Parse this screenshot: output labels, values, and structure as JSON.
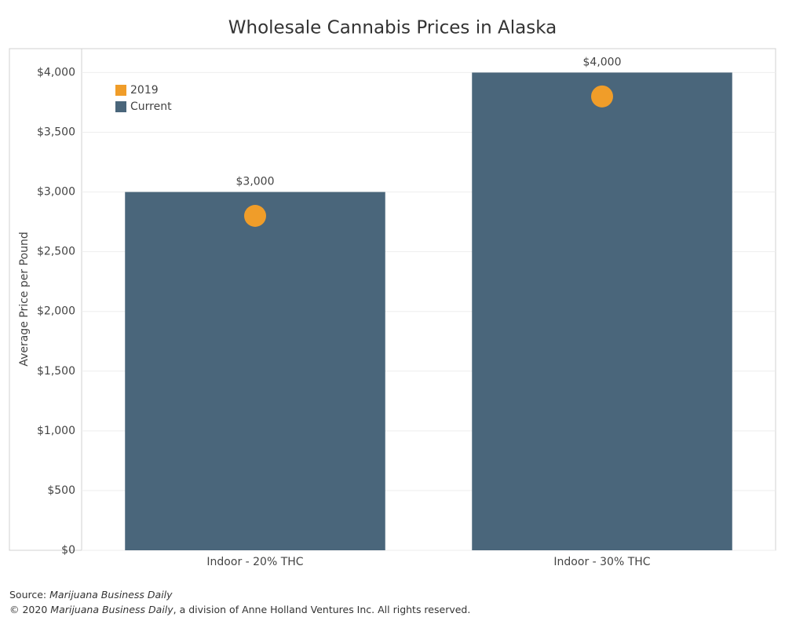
{
  "chart_data": {
    "type": "bar",
    "title": "Wholesale Cannabis Prices in Alaska",
    "y_label": "Average Price per Pound",
    "categories": [
      "Indoor - 20% THC",
      "Indoor - 30% THC"
    ],
    "series": [
      {
        "name": "2019",
        "color": "#f09d29",
        "style": "dot",
        "values": [
          2800,
          3800
        ]
      },
      {
        "name": "Current",
        "color": "#4a667b",
        "style": "bar",
        "values": [
          3000,
          4000
        ],
        "value_labels": [
          "$3,000",
          "$4,000"
        ]
      }
    ],
    "ylim": [
      0,
      4200
    ],
    "yticks": [
      {
        "value": 0,
        "label": "$0"
      },
      {
        "value": 500,
        "label": "$500"
      },
      {
        "value": 1000,
        "label": "$1,000"
      },
      {
        "value": 1500,
        "label": "$1,500"
      },
      {
        "value": 2000,
        "label": "$2,000"
      },
      {
        "value": 2500,
        "label": "$2,500"
      },
      {
        "value": 3000,
        "label": "$3,000"
      },
      {
        "value": 3500,
        "label": "$3,500"
      },
      {
        "value": 4000,
        "label": "$4,000"
      }
    ],
    "grid": true,
    "legend": "top-left",
    "source_label": "Source:",
    "source": "Marijuana Business Daily",
    "copyright_prefix": "© 2020",
    "copyright_name": "Marijuana Business Daily",
    "copyright_suffix": ", a division of Anne Holland Ventures Inc. All rights reserved."
  }
}
